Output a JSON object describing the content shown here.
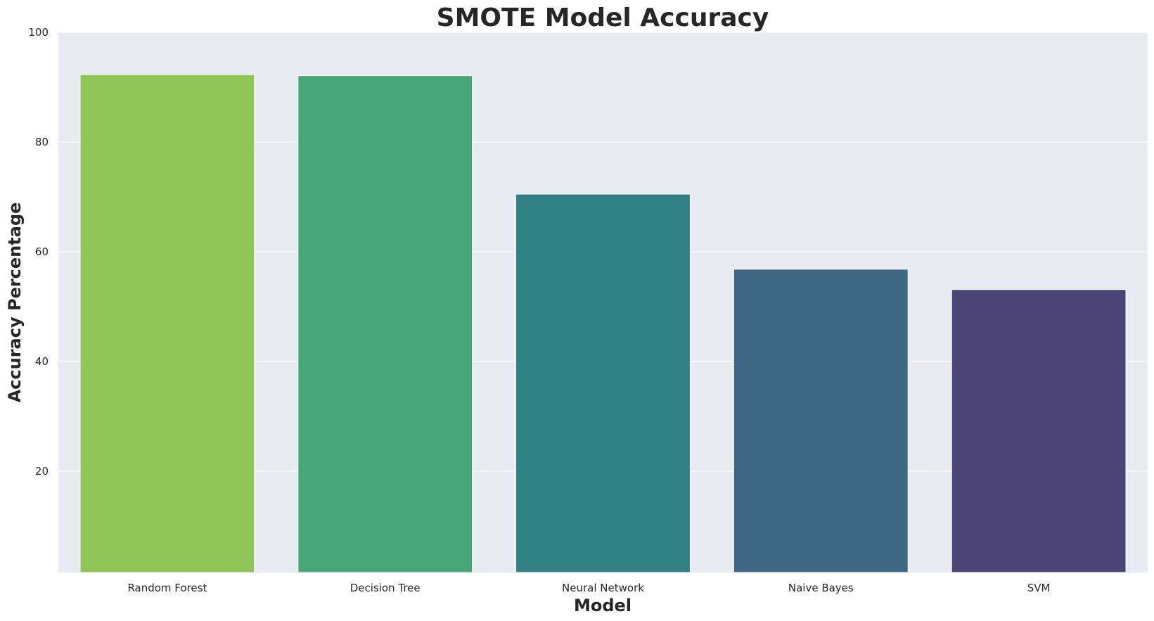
{
  "chart_data": {
    "type": "bar",
    "title": "SMOTE Model Accuracy",
    "xlabel": "Model",
    "ylabel": "Accuracy Percentage",
    "categories": [
      "Random Forest",
      "Decision Tree",
      "Neural Network",
      "Naive Bayes",
      "SVM"
    ],
    "values": [
      92.3,
      92.1,
      70.5,
      56.8,
      53.1
    ],
    "colors": [
      "#8fc556",
      "#47a779",
      "#328182",
      "#3f6682",
      "#4c4378"
    ],
    "ylim": [
      1.5,
      100
    ],
    "yticks": [
      20,
      40,
      60,
      80,
      100
    ],
    "grid": true,
    "legend": "none",
    "style": {
      "plot_background": "#eaeaf2",
      "grid_color": "#ffffff",
      "bar_edge_color": "#ffffff",
      "text_color": "#262626"
    }
  }
}
